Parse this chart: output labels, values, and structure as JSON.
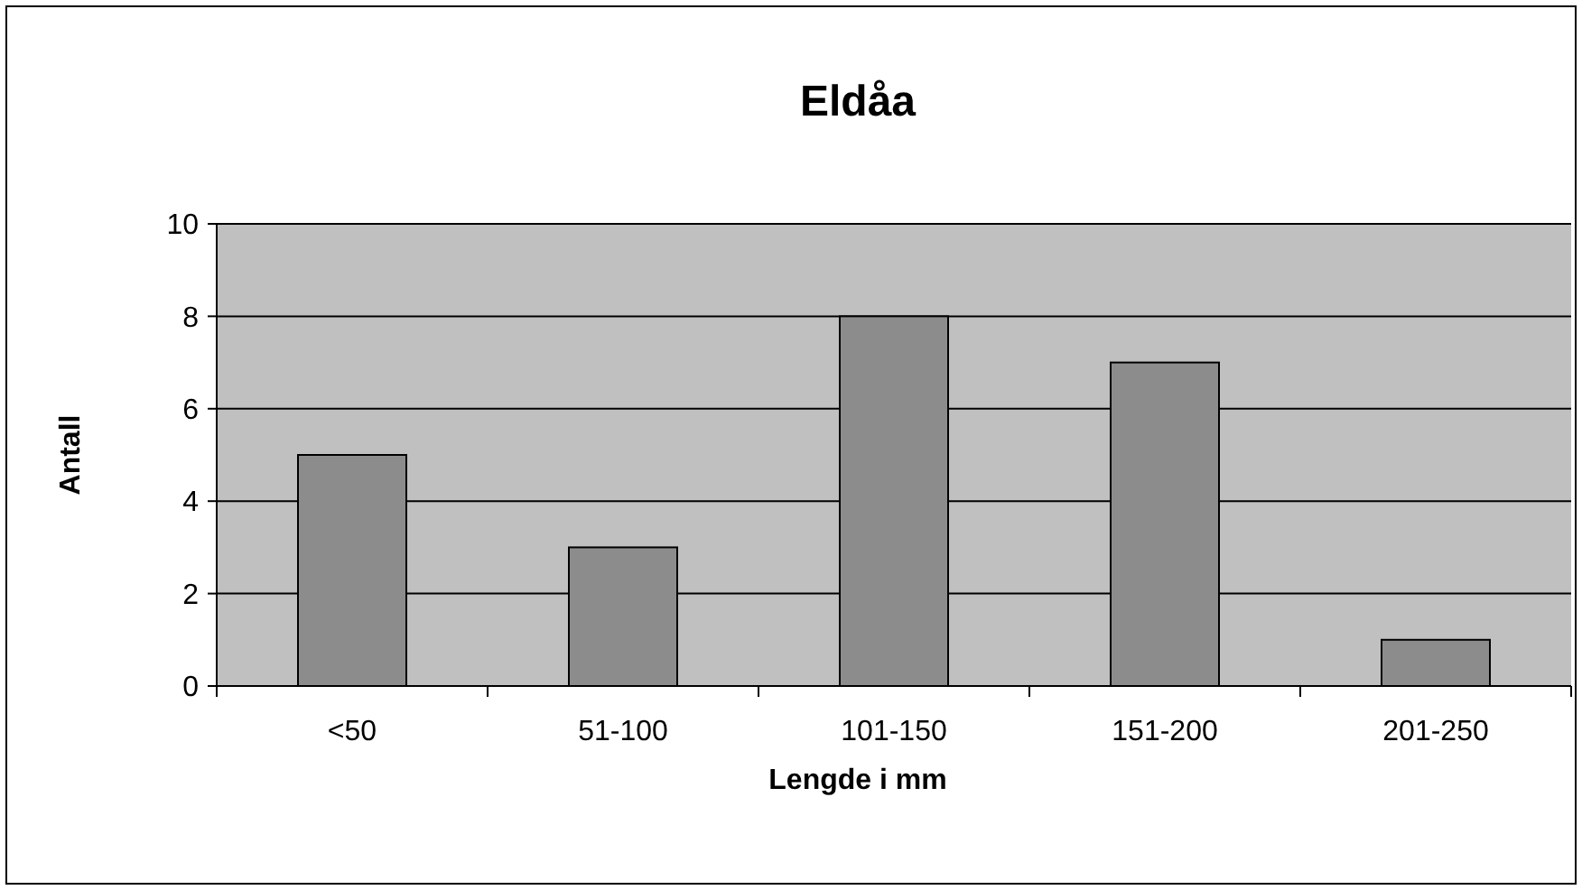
{
  "chart_data": {
    "type": "bar",
    "title": "Eldåa",
    "xlabel": "Lengde i mm",
    "ylabel": "Antall",
    "categories": [
      "<50",
      "51-100",
      "101-150",
      "151-200",
      "201-250"
    ],
    "values": [
      5,
      3,
      8,
      7,
      1
    ],
    "color": "#8c8c8c",
    "ylim": [
      0,
      10
    ],
    "yticks": [
      0,
      2,
      4,
      6,
      8,
      10
    ],
    "grid": "y"
  }
}
